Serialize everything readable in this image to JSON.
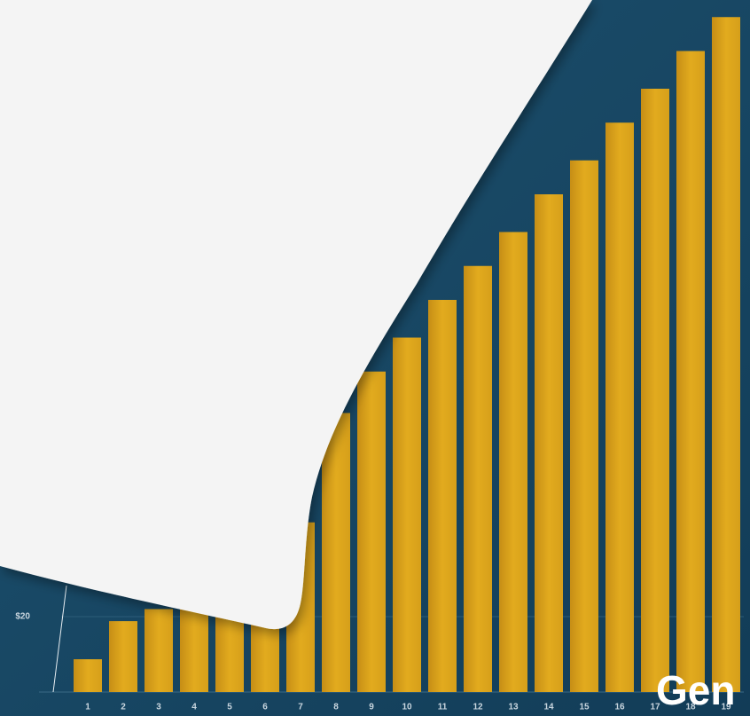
{
  "chart_data": {
    "type": "bar",
    "categories": [
      "1",
      "2",
      "3",
      "4",
      "5",
      "6",
      "7",
      "8",
      "9",
      "10",
      "11",
      "12",
      "13",
      "14",
      "15",
      "16",
      "17",
      "18",
      "19"
    ],
    "values": [
      8.7,
      18.8,
      22,
      27,
      33,
      39,
      45,
      74,
      85,
      94,
      104,
      113,
      122,
      132,
      141,
      151,
      160,
      170,
      179
    ],
    "color": "#d9a21b",
    "ylim": [
      0,
      180
    ],
    "yticks": [
      {
        "value": 20,
        "label": "$20"
      }
    ],
    "grid": true
  },
  "logo": "Gen"
}
